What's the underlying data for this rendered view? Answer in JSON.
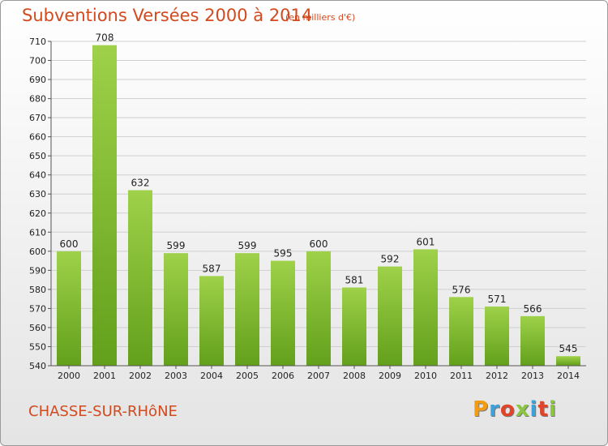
{
  "header": {
    "title": "Subventions Versées 2000 à 2014",
    "subtitle": "(en milliers d'€)"
  },
  "footer": {
    "place": "CHASSE-SUR-RHôNE",
    "logo": "Proxiti",
    "logo_colors": [
      "#f39c12",
      "#3ba3dc",
      "#e0452a",
      "#8cc63f",
      "#3ba3dc",
      "#e0452a",
      "#8cc63f"
    ]
  },
  "colors": {
    "title": "#d24a1e",
    "bar_top": "#9fd14a",
    "bar_bottom": "#62a01b",
    "grid": "#cfcfcf",
    "axis_text": "#222222"
  },
  "chart_data": {
    "type": "bar",
    "title": "Subventions Versées 2000 à 2014",
    "subtitle": "(en milliers d'€)",
    "categories": [
      "2000",
      "2001",
      "2002",
      "2003",
      "2004",
      "2005",
      "2006",
      "2007",
      "2008",
      "2009",
      "2010",
      "2011",
      "2012",
      "2013",
      "2014"
    ],
    "values": [
      600,
      708,
      632,
      599,
      587,
      599,
      595,
      600,
      581,
      592,
      601,
      576,
      571,
      566,
      545
    ],
    "ylim": [
      540,
      710
    ],
    "yticks": [
      540,
      550,
      560,
      570,
      580,
      590,
      600,
      610,
      620,
      630,
      640,
      650,
      660,
      670,
      680,
      690,
      700,
      710
    ],
    "grid": true,
    "data_labels": true
  }
}
